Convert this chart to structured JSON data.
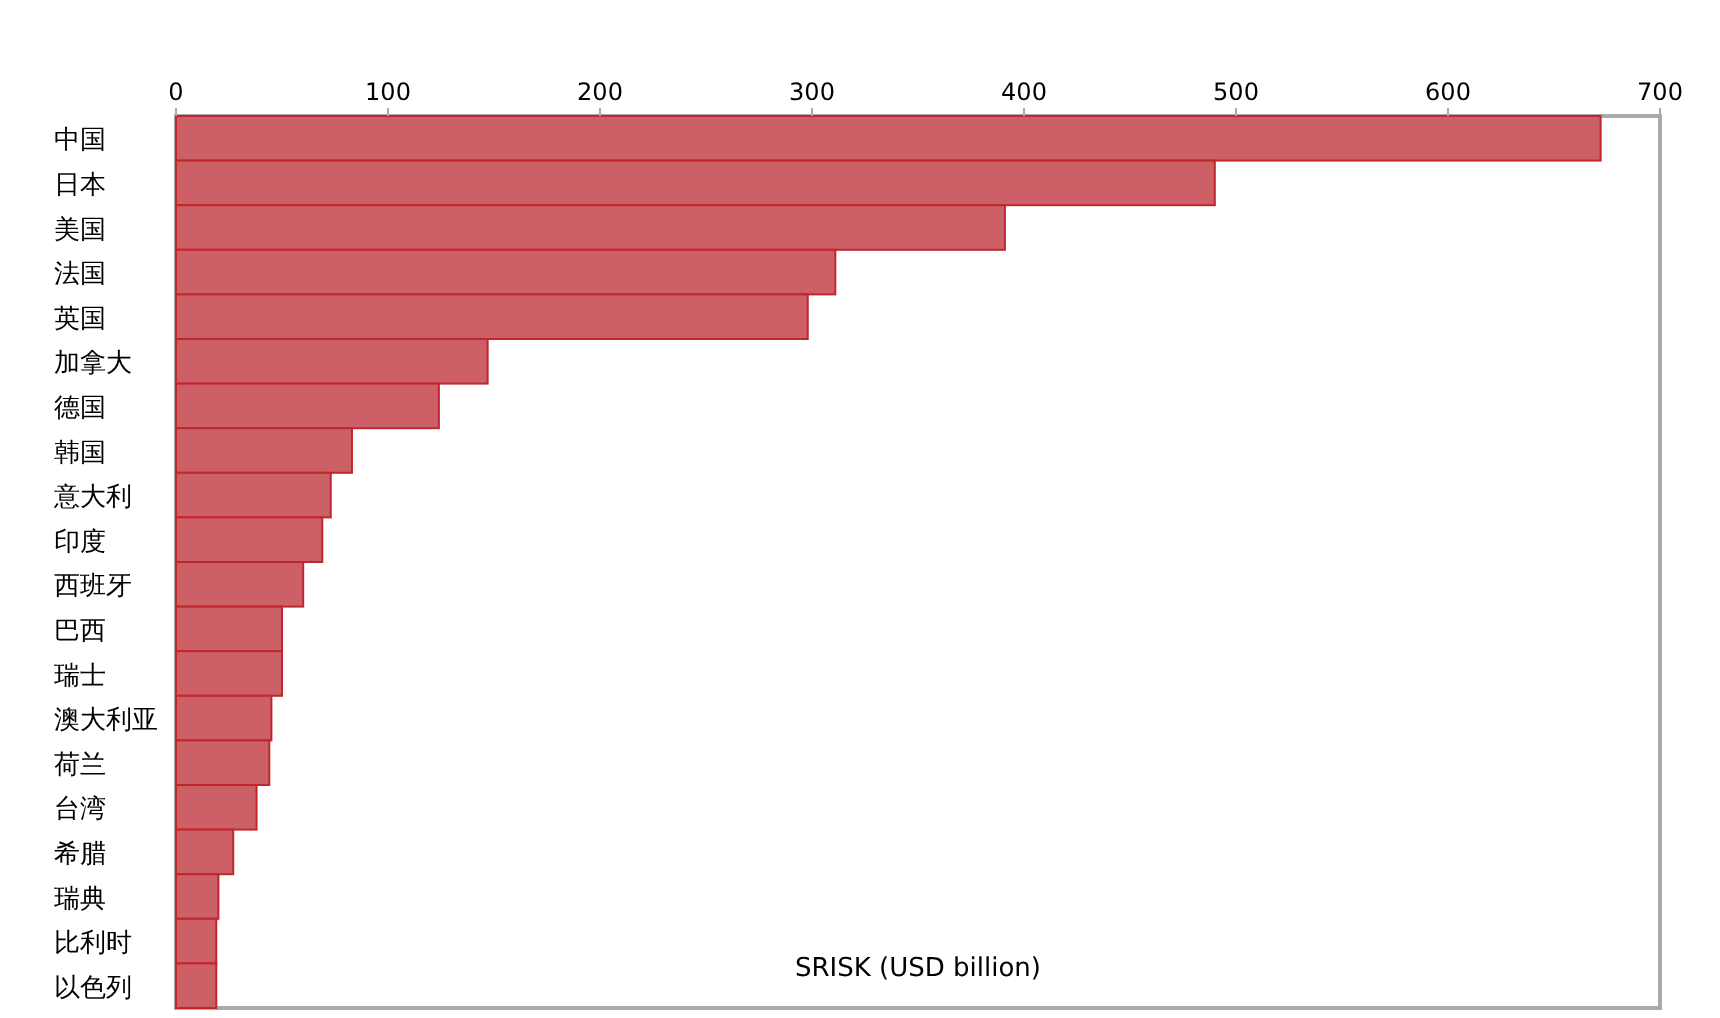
{
  "chart_data": {
    "type": "bar",
    "orientation": "horizontal",
    "xlabel": "SRISK (USD billion)",
    "categories": [
      "中国",
      "日本",
      "美国",
      "法国",
      "英国",
      "加拿大",
      "德国",
      "韩国",
      "意大利",
      "印度",
      "西班牙",
      "巴西",
      "瑞士",
      "澳大利亚",
      "荷兰",
      "台湾",
      "希腊",
      "瑞典",
      "比利时",
      "以色列"
    ],
    "values": [
      672,
      490,
      391,
      311,
      298,
      147,
      124,
      83,
      73,
      69,
      60,
      50,
      50,
      45,
      44,
      38,
      27,
      20,
      19,
      19
    ],
    "color": "#cd5f66",
    "xlim": [
      0,
      700
    ],
    "xticks": [
      0,
      100,
      200,
      300,
      400,
      500,
      600,
      700
    ]
  }
}
